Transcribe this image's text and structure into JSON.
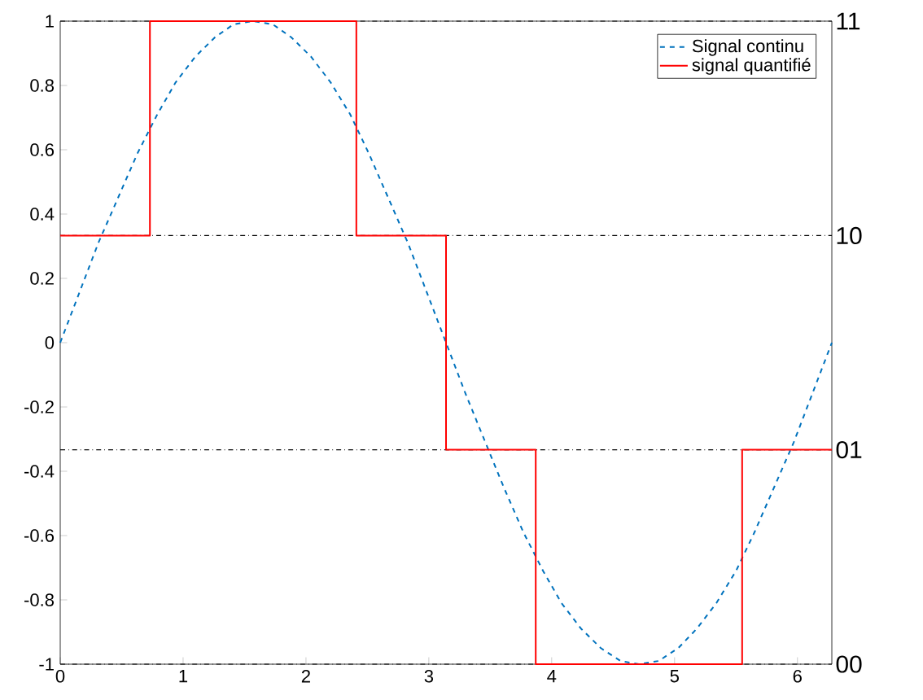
{
  "chart_data": {
    "type": "line",
    "xlim": [
      0,
      6.28
    ],
    "xticks": [
      0,
      1,
      2,
      3,
      4,
      5,
      6
    ],
    "ylim": [
      -1,
      1
    ],
    "yticks": [
      -1,
      -0.8,
      -0.6,
      -0.4,
      -0.2,
      0,
      0.2,
      0.4,
      0.6,
      0.8,
      1
    ],
    "legend": "top right",
    "series": [
      {
        "name": "Signal continu",
        "type": "line",
        "color": "#0072bd",
        "line_style": "dashed",
        "x": [
          0,
          0.16,
          0.31,
          0.47,
          0.63,
          0.79,
          0.94,
          1.1,
          1.26,
          1.41,
          1.57,
          1.73,
          1.88,
          2.04,
          2.2,
          2.36,
          2.51,
          2.67,
          2.83,
          2.98,
          3.14,
          3.3,
          3.46,
          3.61,
          3.77,
          3.93,
          4.08,
          4.24,
          4.4,
          4.56,
          4.71,
          4.87,
          5.03,
          5.18,
          5.34,
          5.5,
          5.65,
          5.81,
          5.97,
          6.12,
          6.28
        ],
        "values": [
          0,
          0.16,
          0.31,
          0.45,
          0.59,
          0.71,
          0.81,
          0.89,
          0.95,
          0.99,
          1,
          0.99,
          0.95,
          0.89,
          0.81,
          0.71,
          0.59,
          0.45,
          0.31,
          0.16,
          0,
          -0.16,
          -0.31,
          -0.45,
          -0.59,
          -0.71,
          -0.81,
          -0.89,
          -0.95,
          -0.99,
          -1,
          -0.99,
          -0.95,
          -0.89,
          -0.81,
          -0.71,
          -0.59,
          -0.45,
          -0.31,
          -0.16,
          0
        ]
      },
      {
        "name": "signal quantifié",
        "type": "step",
        "color": "#ff0000",
        "line_style": "solid",
        "x": [
          0,
          0.73,
          2.41,
          3.14,
          3.87,
          5.55,
          6.28
        ],
        "values": [
          0.333,
          1,
          0.333,
          -0.333,
          -1,
          -0.333,
          -0.333
        ]
      }
    ],
    "ref_lines": [
      {
        "axis": "y",
        "value": 1,
        "color": "#000000",
        "line_style": "dashed"
      },
      {
        "axis": "y",
        "value": 0.333,
        "color": "#000000",
        "line_style": "dashed"
      },
      {
        "axis": "y",
        "value": -0.333,
        "color": "#000000",
        "line_style": "dashed"
      },
      {
        "axis": "y",
        "value": -1,
        "color": "#000000",
        "line_style": "dashed"
      }
    ],
    "annotations": [
      "11",
      "10",
      "01",
      "00"
    ]
  }
}
